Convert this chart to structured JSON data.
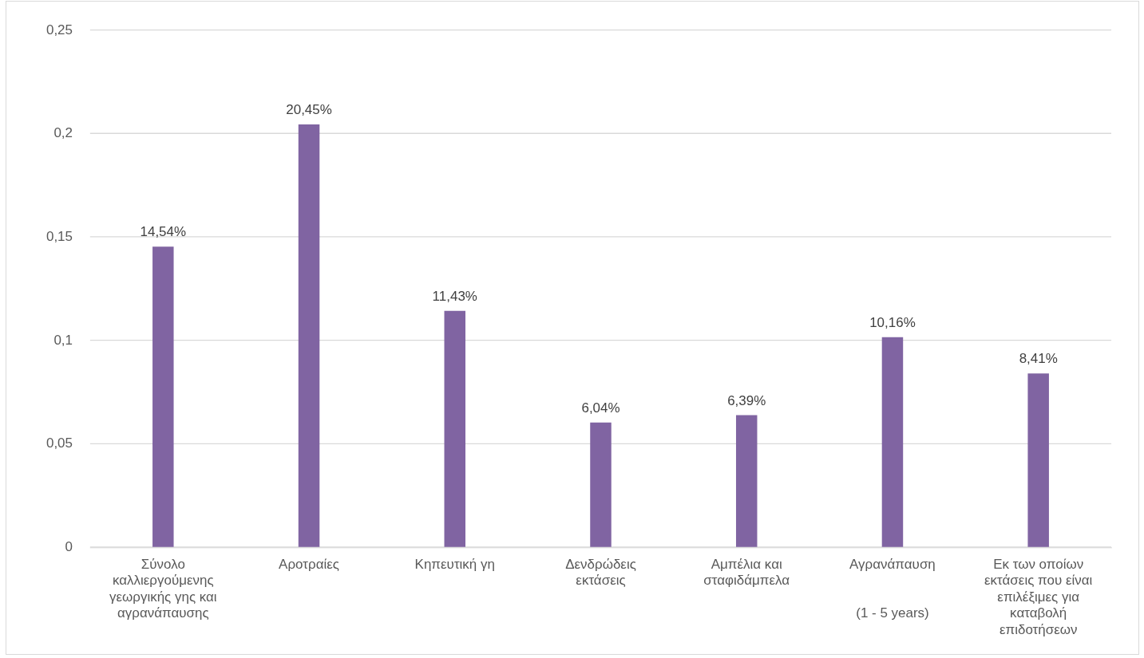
{
  "chart_data": {
    "type": "bar",
    "categories": [
      "Σύνολο καλλιεργούμενης γεωργικής γης και αγρανάπαυσης",
      "Αροτραίες",
      "Κηπευτική γη",
      "Δενδρώδεις εκτάσεις",
      "Αμπέλια και σταφιδάμπελα",
      "Αγρανάπαυση\n\n\n(1 - 5 years)",
      "Εκ των οποίων εκτάσεις που είναι επιλέξιμες για καταβολή επιδοτήσεων"
    ],
    "values": [
      0.1454,
      0.2045,
      0.1143,
      0.0604,
      0.0639,
      0.1016,
      0.0841
    ],
    "value_labels": [
      "14,54%",
      "20,45%",
      "11,43%",
      "6,04%",
      "6,39%",
      "10,16%",
      "8,41%"
    ],
    "color": "#8064a2",
    "ylim": [
      0,
      0.25
    ],
    "yticks": [
      0,
      {
        "value": 0.05,
        "label": "0,05"
      },
      {
        "value": 0.1,
        "label": "0,1"
      },
      {
        "value": 0.15,
        "label": "0,15"
      },
      {
        "value": 0.2,
        "label": "0,2"
      },
      {
        "value": 0.25,
        "label": "0,25"
      }
    ],
    "grid": "y"
  }
}
